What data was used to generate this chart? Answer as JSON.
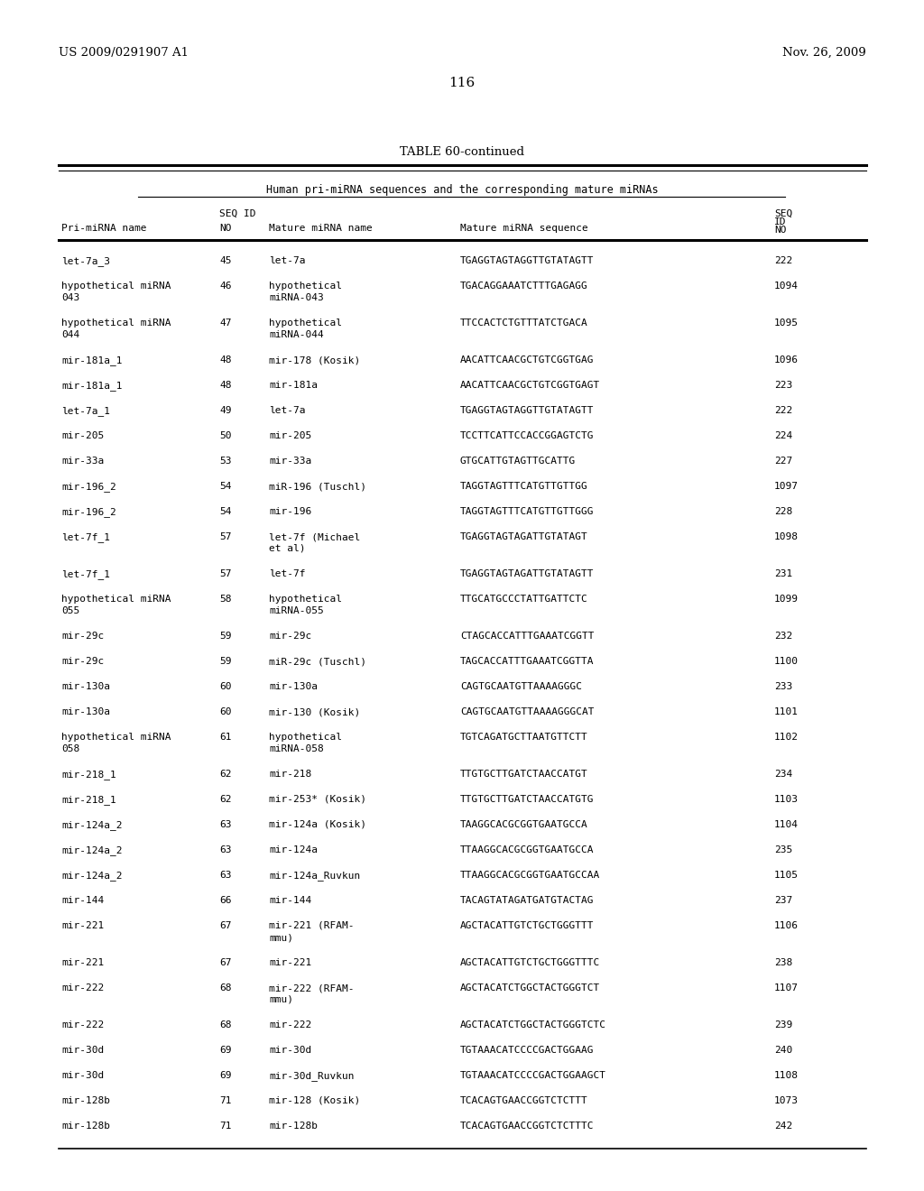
{
  "patent_number": "US 2009/0291907 A1",
  "date": "Nov. 26, 2009",
  "page_number": "116",
  "table_title": "TABLE 60-continued",
  "table_subtitle": "Human pri-miRNA sequences and the corresponding mature miRNAs",
  "rows": [
    [
      "let-7a_3",
      "45",
      "let-7a",
      "TGAGGTAGTAGGTTGTATAGTT",
      "222"
    ],
    [
      "hypothetical miRNA\n043",
      "46",
      "hypothetical\nmiRNA-043",
      "TGACAGGAAATCTTTGAGAGG",
      "1094"
    ],
    [
      "hypothetical miRNA\n044",
      "47",
      "hypothetical\nmiRNA-044",
      "TTCCACTCTGTTTATCTGACA",
      "1095"
    ],
    [
      "mir-181a_1",
      "48",
      "mir-178 (Kosik)",
      "AACATTCAACGCTGTCGGTGAG",
      "1096"
    ],
    [
      "mir-181a_1",
      "48",
      "mir-181a",
      "AACATTCAACGCTGTCGGTGAGT",
      "223"
    ],
    [
      "let-7a_1",
      "49",
      "let-7a",
      "TGAGGTAGTAGGTTGTATAGTT",
      "222"
    ],
    [
      "mir-205",
      "50",
      "mir-205",
      "TCCTTCATTCCACCGGAGTCTG",
      "224"
    ],
    [
      "mir-33a",
      "53",
      "mir-33a",
      "GTGCATTGTAGTTGCATTG",
      "227"
    ],
    [
      "mir-196_2",
      "54",
      "miR-196 (Tuschl)",
      "TAGGTAGTTTCATGTTGTTGG",
      "1097"
    ],
    [
      "mir-196_2",
      "54",
      "mir-196",
      "TAGGTAGTTTCATGTTGTTGGG",
      "228"
    ],
    [
      "let-7f_1",
      "57",
      "let-7f (Michael\net al)",
      "TGAGGTAGTAGATTGTATAGT",
      "1098"
    ],
    [
      "let-7f_1",
      "57",
      "let-7f",
      "TGAGGTAGTAGATTGTATAGTT",
      "231"
    ],
    [
      "hypothetical miRNA\n055",
      "58",
      "hypothetical\nmiRNA-055",
      "TTGCATGCCCTATTGATTCTC",
      "1099"
    ],
    [
      "mir-29c",
      "59",
      "mir-29c",
      "CTAGCACCATTTGAAATCGGTT",
      "232"
    ],
    [
      "mir-29c",
      "59",
      "miR-29c (Tuschl)",
      "TAGCACCATTTGAAATCGGTTA",
      "1100"
    ],
    [
      "mir-130a",
      "60",
      "mir-130a",
      "CAGTGCAATGTTAAAAGGGC",
      "233"
    ],
    [
      "mir-130a",
      "60",
      "mir-130 (Kosik)",
      "CAGTGCAATGTTAAAAGGGCAT",
      "1101"
    ],
    [
      "hypothetical miRNA\n058",
      "61",
      "hypothetical\nmiRNA-058",
      "TGTCAGATGCTTAATGTTCTT",
      "1102"
    ],
    [
      "mir-218_1",
      "62",
      "mir-218",
      "TTGTGCTTGATCTAACCATGT",
      "234"
    ],
    [
      "mir-218_1",
      "62",
      "mir-253* (Kosik)",
      "TTGTGCTTGATCTAACCATGTG",
      "1103"
    ],
    [
      "mir-124a_2",
      "63",
      "mir-124a (Kosik)",
      "TAAGGCACGCGGTGAATGCCA",
      "1104"
    ],
    [
      "mir-124a_2",
      "63",
      "mir-124a",
      "TTAAGGCACGCGGTGAATGCCA",
      "235"
    ],
    [
      "mir-124a_2",
      "63",
      "mir-124a_Ruvkun",
      "TTAAGGCACGCGGTGAATGCCAA",
      "1105"
    ],
    [
      "mir-144",
      "66",
      "mir-144",
      "TACAGTATAGATGATGTACTAG",
      "237"
    ],
    [
      "mir-221",
      "67",
      "mir-221 (RFAM-\nmmu)",
      "AGCTACATTGTCTGCTGGGTTT",
      "1106"
    ],
    [
      "mir-221",
      "67",
      "mir-221",
      "AGCTACATTGTCTGCTGGGTTTC",
      "238"
    ],
    [
      "mir-222",
      "68",
      "mir-222 (RFAM-\nmmu)",
      "AGCTACATCTGGCTACTGGGTCT",
      "1107"
    ],
    [
      "mir-222",
      "68",
      "mir-222",
      "AGCTACATCTGGCTACTGGGTCTC",
      "239"
    ],
    [
      "mir-30d",
      "69",
      "mir-30d",
      "TGTAAACATCCCCGACTGGAAG",
      "240"
    ],
    [
      "mir-30d",
      "69",
      "mir-30d_Ruvkun",
      "TGTAAACATCCCCGACTGGAAGCT",
      "1108"
    ],
    [
      "mir-128b",
      "71",
      "mir-128 (Kosik)",
      "TCACAGTGAACCGGTCTCTTT",
      "1073"
    ],
    [
      "mir-128b",
      "71",
      "mir-128b",
      "TCACAGTGAACCGGTCTCTTTC",
      "242"
    ]
  ]
}
